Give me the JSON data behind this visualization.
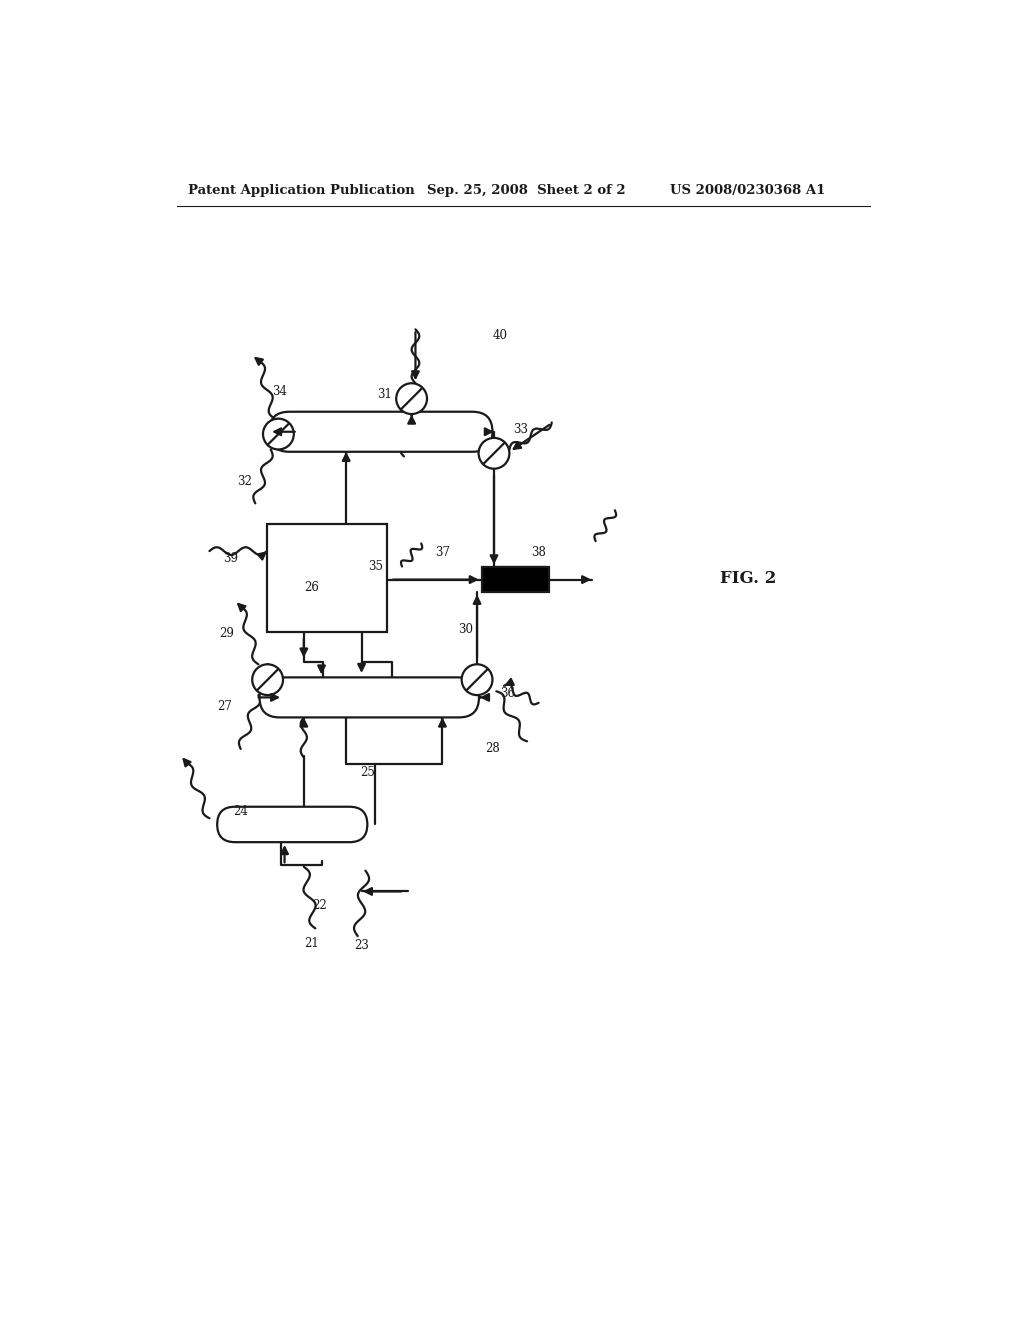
{
  "bg_color": "#ffffff",
  "header_left": "Patent Application Publication",
  "header_mid": "Sep. 25, 2008  Sheet 2 of 2",
  "header_right": "US 2008/0230368 A1",
  "fig_label": "FIG. 2",
  "lc": "#1a1a1a",
  "lw": 1.6
}
